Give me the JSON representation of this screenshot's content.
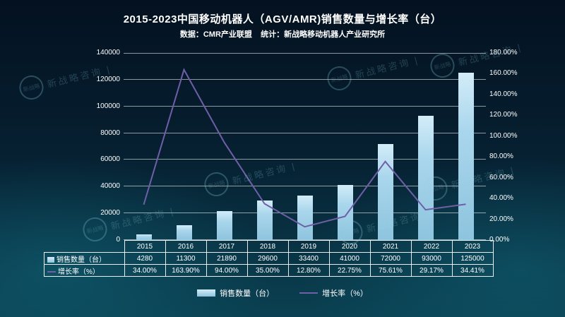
{
  "title": "2015-2023中国移动机器人（AGV/AMR)销售数量与增长率（台）",
  "subtitle": "数据：CMR产业联盟    统计：新战略移动机器人产业研究所",
  "chart_data": {
    "type": "bar+line",
    "title": "2015-2023中国移动机器人（AGV/AMR)销售数量与增长率（台）",
    "categories": [
      "2015",
      "2016",
      "2017",
      "2018",
      "2019",
      "2020",
      "2021",
      "2022",
      "2023"
    ],
    "series": [
      {
        "name": "销售数量（台）",
        "type": "bar",
        "axis": "left",
        "color": "#a9d6ec",
        "values": [
          4280,
          11300,
          21890,
          29600,
          33400,
          41000,
          72000,
          93000,
          125000
        ]
      },
      {
        "name": "增长率（%）",
        "type": "line",
        "axis": "right",
        "color": "#6f5fa7",
        "values": [
          34.0,
          163.9,
          94.0,
          35.0,
          12.8,
          22.75,
          75.61,
          29.17,
          34.41
        ]
      }
    ],
    "left_axis": {
      "min": 0,
      "max": 140000,
      "step": 20000,
      "tick_labels": [
        "0",
        "20000",
        "40000",
        "60000",
        "80000",
        "100000",
        "120000",
        "140000"
      ]
    },
    "right_axis": {
      "min": 0,
      "max": 180,
      "step": 20,
      "tick_labels": [
        "0.00%",
        "20.00%",
        "40.00%",
        "60.00%",
        "80.00%",
        "100.00%",
        "120.00%",
        "140.00%",
        "160.00%",
        "180.00%"
      ]
    },
    "grid": true,
    "legend_position": "bottom"
  },
  "table": {
    "rows": [
      {
        "label": "销售数量（台）",
        "swatch": "bar",
        "values": [
          "4280",
          "11300",
          "21890",
          "29600",
          "33400",
          "41000",
          "72000",
          "93000",
          "125000"
        ]
      },
      {
        "label": "增长率（%）",
        "swatch": "line",
        "values": [
          "34.00%",
          "163.90%",
          "94.00%",
          "35.00%",
          "12.80%",
          "22.75%",
          "75.61%",
          "29.17%",
          "34.41%"
        ]
      }
    ]
  },
  "legend": [
    {
      "label": "销售数量（台）",
      "swatch": "bar"
    },
    {
      "label": "增长率（%）",
      "swatch": "line"
    }
  ],
  "watermark": {
    "logo_text": "新战略",
    "text": "新战略咨询 |"
  }
}
